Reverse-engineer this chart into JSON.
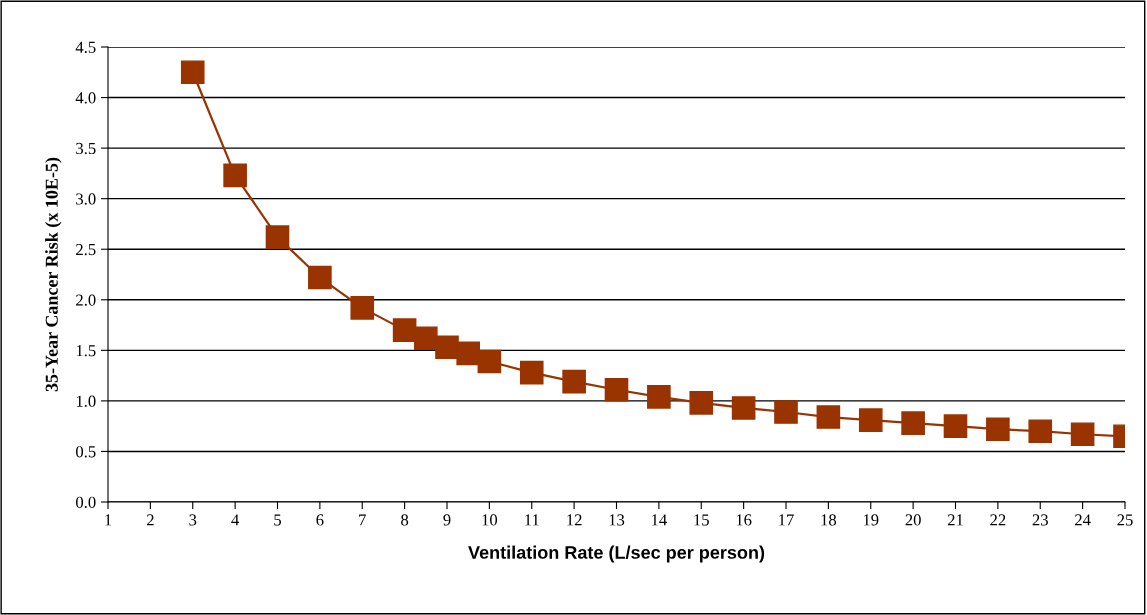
{
  "chart_data": {
    "type": "line",
    "xlabel": "Ventilation Rate (L/sec per person)",
    "ylabel": "35-Year Cancer Risk (x 10E-5)",
    "x": [
      3,
      4,
      5,
      6,
      7,
      8,
      8.5,
      9,
      9.5,
      10,
      11,
      12,
      13,
      14,
      15,
      16,
      17,
      18,
      19,
      20,
      21,
      22,
      23,
      24,
      25
    ],
    "series": [
      {
        "color": "#993300",
        "values": [
          4.25,
          3.23,
          2.62,
          2.22,
          1.92,
          1.7,
          1.62,
          1.53,
          1.47,
          1.39,
          1.28,
          1.19,
          1.11,
          1.04,
          0.98,
          0.93,
          0.89,
          0.84,
          0.81,
          0.78,
          0.75,
          0.72,
          0.7,
          0.67,
          0.65
        ]
      }
    ],
    "xlim": [
      1,
      25
    ],
    "xticks": [
      1,
      2,
      3,
      4,
      5,
      6,
      7,
      8,
      9,
      10,
      11,
      12,
      13,
      14,
      15,
      16,
      17,
      18,
      19,
      20,
      21,
      22,
      23,
      24,
      25
    ],
    "ylim": [
      0,
      4.5
    ],
    "yticks": [
      {
        "value": 0,
        "label": "0.0"
      },
      {
        "value": 0.5,
        "label": "0.5"
      },
      {
        "value": 1,
        "label": "1.0"
      },
      {
        "value": 1.5,
        "label": "1.5"
      },
      {
        "value": 2,
        "label": "2.0"
      },
      {
        "value": 2.5,
        "label": "2.5"
      },
      {
        "value": 3,
        "label": "3.0"
      },
      {
        "value": 3.5,
        "label": "3.5"
      },
      {
        "value": 4,
        "label": "4.0"
      },
      {
        "value": 4.5,
        "label": "4.5"
      }
    ],
    "grid": "y",
    "marker": "square",
    "line_style": "solid"
  }
}
